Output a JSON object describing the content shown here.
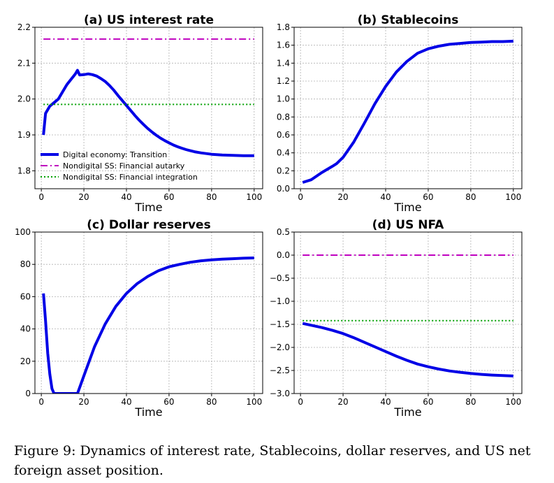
{
  "caption": "Figure 9: Dynamics of interest rate, Stablecoins, dollar reserves, and US net foreign asset position.",
  "series_styles": [
    {
      "name": "Digital economy: Transition",
      "color": "#0000e6",
      "dash": "solid"
    },
    {
      "name": "Nondigital SS: Financial autarky",
      "color": "#bf00bf",
      "dash": "dashdot"
    },
    {
      "name": "Nondigital SS: Financial integration",
      "color": "#00a000",
      "dash": "dotted"
    }
  ],
  "chart_data": [
    {
      "type": "line",
      "title": "(a) US interest rate",
      "xlabel": "Time",
      "ylabel": "",
      "xlim": [
        -3,
        104
      ],
      "ylim": [
        1.75,
        2.2
      ],
      "xticks": [
        0,
        20,
        40,
        60,
        80,
        100
      ],
      "yticks": [
        1.8,
        1.9,
        2.0,
        2.1,
        2.2
      ],
      "ytick_labels": [
        "1.8",
        "1.9",
        "2.0",
        "2.1",
        "2.2"
      ],
      "grid": true,
      "legend": "lower-left",
      "series": [
        {
          "name": "Digital economy: Transition",
          "x": [
            1,
            2,
            4,
            6,
            8,
            10,
            12,
            14,
            16,
            17,
            18,
            20,
            22,
            24,
            26,
            28,
            30,
            32,
            34,
            36,
            38,
            40,
            42,
            44,
            46,
            48,
            50,
            52,
            54,
            56,
            58,
            60,
            62,
            64,
            66,
            68,
            70,
            72,
            75,
            80,
            85,
            90,
            95,
            100
          ],
          "y": [
            1.9,
            1.96,
            1.98,
            1.99,
            2.0,
            2.02,
            2.04,
            2.055,
            2.07,
            2.08,
            2.067,
            2.068,
            2.07,
            2.068,
            2.064,
            2.057,
            2.049,
            2.038,
            2.025,
            2.01,
            1.996,
            1.982,
            1.968,
            1.954,
            1.941,
            1.929,
            1.918,
            1.908,
            1.899,
            1.891,
            1.884,
            1.878,
            1.872,
            1.867,
            1.863,
            1.859,
            1.856,
            1.853,
            1.85,
            1.846,
            1.844,
            1.843,
            1.842,
            1.842
          ]
        },
        {
          "name": "Nondigital SS: Financial autarky",
          "x": [
            1,
            100
          ],
          "y": [
            2.167,
            2.167
          ]
        },
        {
          "name": "Nondigital SS: Financial integration",
          "x": [
            1,
            100
          ],
          "y": [
            1.985,
            1.985
          ]
        }
      ]
    },
    {
      "type": "line",
      "title": "(b) Stablecoins",
      "xlabel": "Time",
      "ylabel": "",
      "xlim": [
        -3,
        104
      ],
      "ylim": [
        0.0,
        1.8
      ],
      "xticks": [
        0,
        20,
        40,
        60,
        80,
        100
      ],
      "yticks": [
        0.0,
        0.2,
        0.4,
        0.6,
        0.8,
        1.0,
        1.2,
        1.4,
        1.6,
        1.8
      ],
      "ytick_labels": [
        "0.0",
        "0.2",
        "0.4",
        "0.6",
        "0.8",
        "1.0",
        "1.2",
        "1.4",
        "1.6",
        "1.8"
      ],
      "grid": true,
      "series": [
        {
          "name": "Digital economy: Transition",
          "x": [
            1,
            5,
            10,
            15,
            17,
            20,
            25,
            30,
            35,
            40,
            45,
            50,
            55,
            60,
            65,
            70,
            75,
            80,
            85,
            90,
            95,
            100
          ],
          "y": [
            0.07,
            0.1,
            0.18,
            0.25,
            0.28,
            0.35,
            0.52,
            0.73,
            0.95,
            1.14,
            1.3,
            1.42,
            1.51,
            1.56,
            1.59,
            1.61,
            1.62,
            1.63,
            1.635,
            1.64,
            1.64,
            1.645
          ]
        }
      ]
    },
    {
      "type": "line",
      "title": "(c) Dollar reserves",
      "xlabel": "Time",
      "ylabel": "",
      "xlim": [
        -3,
        104
      ],
      "ylim": [
        0,
        100
      ],
      "xticks": [
        0,
        20,
        40,
        60,
        80,
        100
      ],
      "yticks": [
        0,
        20,
        40,
        60,
        80,
        100
      ],
      "ytick_labels": [
        "0",
        "20",
        "40",
        "60",
        "80",
        "100"
      ],
      "grid": true,
      "series": [
        {
          "name": "Digital economy: Transition",
          "x": [
            1,
            2,
            3,
            4,
            5,
            6,
            10,
            15,
            17,
            20,
            25,
            30,
            35,
            40,
            45,
            50,
            55,
            60,
            65,
            70,
            75,
            80,
            85,
            90,
            95,
            100
          ],
          "y": [
            62,
            45,
            25,
            12,
            3,
            0,
            0,
            0,
            0,
            11,
            29,
            43,
            54,
            62,
            68,
            72.5,
            76,
            78.5,
            80,
            81.3,
            82.2,
            82.8,
            83.2,
            83.5,
            83.8,
            84
          ]
        }
      ]
    },
    {
      "type": "line",
      "title": "(d) US NFA",
      "xlabel": "Time",
      "ylabel": "",
      "xlim": [
        -3,
        104
      ],
      "ylim": [
        -3.0,
        0.5
      ],
      "xticks": [
        0,
        20,
        40,
        60,
        80,
        100
      ],
      "yticks": [
        -3.0,
        -2.5,
        -2.0,
        -1.5,
        -1.0,
        -0.5,
        0.0,
        0.5
      ],
      "ytick_labels": [
        "−3.0",
        "−2.5",
        "−2.0",
        "−1.5",
        "−1.0",
        "−0.5",
        "0.0",
        "0.5"
      ],
      "grid": true,
      "series": [
        {
          "name": "Digital economy: Transition",
          "x": [
            1,
            5,
            10,
            15,
            20,
            25,
            30,
            35,
            40,
            45,
            50,
            55,
            60,
            65,
            70,
            75,
            80,
            85,
            90,
            95,
            100
          ],
          "y": [
            -1.48,
            -1.52,
            -1.57,
            -1.63,
            -1.7,
            -1.79,
            -1.89,
            -1.99,
            -2.09,
            -2.19,
            -2.28,
            -2.36,
            -2.42,
            -2.47,
            -2.51,
            -2.54,
            -2.565,
            -2.585,
            -2.6,
            -2.61,
            -2.62
          ]
        },
        {
          "name": "Nondigital SS: Financial autarky",
          "x": [
            1,
            100
          ],
          "y": [
            0.0,
            0.0
          ]
        },
        {
          "name": "Nondigital SS: Financial integration",
          "x": [
            1,
            100
          ],
          "y": [
            -1.42,
            -1.42
          ]
        }
      ]
    }
  ]
}
